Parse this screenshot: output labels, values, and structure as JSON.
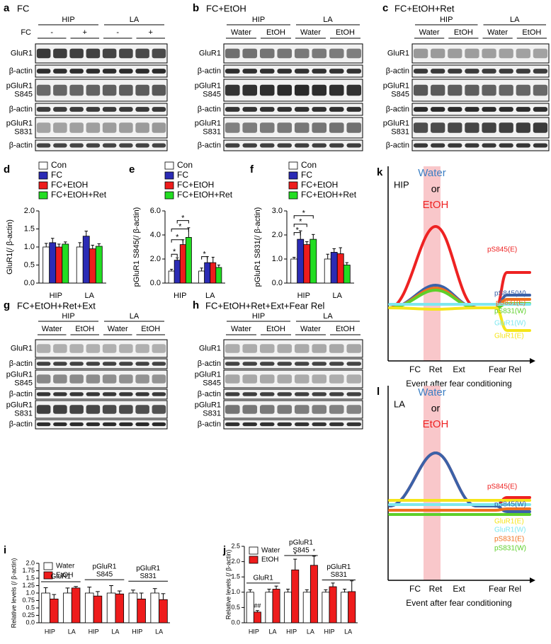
{
  "blots": [
    {
      "label": "a",
      "title": "FC",
      "groups": [
        "HIP",
        "LA"
      ],
      "condition_label": "FC",
      "lanes": [
        "-",
        "+",
        "-",
        "+"
      ],
      "rows": [
        [
          "GluR1"
        ],
        [
          "β-actin"
        ],
        [
          "pGluR1",
          "S845"
        ],
        [
          "β-actin"
        ],
        [
          "pGluR1",
          "S831"
        ],
        [
          "β-actin"
        ]
      ]
    },
    {
      "label": "b",
      "title": "FC+EtOH",
      "groups": [
        "HIP",
        "LA"
      ],
      "lanes": [
        "Water",
        "EtOH",
        "Water",
        "EtOH"
      ],
      "rows": [
        [
          "GluR1"
        ],
        [
          "β-actin"
        ],
        [
          "pGluR1",
          "S845"
        ],
        [
          "β-actin"
        ],
        [
          "pGluR1",
          "S831"
        ],
        [
          "β-actin"
        ]
      ]
    },
    {
      "label": "c",
      "title": "FC+EtOH+Ret",
      "groups": [
        "HIP",
        "LA"
      ],
      "lanes": [
        "Water",
        "EtOH",
        "Water",
        "EtOH"
      ],
      "rows": [
        [
          "GluR1"
        ],
        [
          "β-actin"
        ],
        [
          "pGluR1",
          "S845"
        ],
        [
          "β-actin"
        ],
        [
          "pGluR1",
          "S831"
        ],
        [
          "β-actin"
        ]
      ]
    },
    {
      "label": "g",
      "title": "FC+EtOH+Ret+Ext",
      "groups": [
        "HIP",
        "LA"
      ],
      "lanes": [
        "Water",
        "EtOH",
        "Water",
        "EtOH"
      ],
      "rows": [
        [
          "GluR1"
        ],
        [
          "β-actin"
        ],
        [
          "pGluR1",
          "S845"
        ],
        [
          "β-actin"
        ],
        [
          "pGluR1",
          "S831"
        ],
        [
          "β-actin"
        ]
      ]
    },
    {
      "label": "h",
      "title": "FC+EtOH+Ret+Ext+Fear Rel",
      "groups": [
        "HIP",
        "LA"
      ],
      "lanes": [
        "Water",
        "EtOH",
        "Water",
        "EtOH"
      ],
      "rows": [
        [
          "GluR1"
        ],
        [
          "β-actin"
        ],
        [
          "pGluR1",
          "S845"
        ],
        [
          "β-actin"
        ],
        [
          "pGluR1",
          "S831"
        ],
        [
          "β-actin"
        ]
      ]
    }
  ],
  "chart_data": [
    {
      "type": "bar",
      "label": "d",
      "ylabel": "GluR1(/ β-actin)",
      "categories": [
        "HIP",
        "LA"
      ],
      "series": [
        {
          "name": "Con",
          "color": "#ffffff",
          "values": [
            1.0,
            1.0
          ],
          "errors": [
            0.1,
            0.12
          ]
        },
        {
          "name": "FC",
          "color": "#2b2bb5",
          "values": [
            1.12,
            1.3
          ],
          "errors": [
            0.12,
            0.14
          ]
        },
        {
          "name": "FC+EtOH",
          "color": "#ee1c1c",
          "values": [
            1.0,
            0.95
          ],
          "errors": [
            0.08,
            0.1
          ]
        },
        {
          "name": "FC+EtOH+Ret",
          "color": "#22dd22",
          "values": [
            1.08,
            1.02
          ],
          "errors": [
            0.06,
            0.07
          ]
        }
      ],
      "ylim": [
        0,
        2
      ],
      "yticks": [
        {
          "value": 0,
          "label": "0.0"
        },
        0.5,
        {
          "value": 1,
          "label": "1.0"
        },
        1.5,
        {
          "value": 2,
          "label": "2.0"
        }
      ]
    },
    {
      "type": "bar",
      "label": "e",
      "ylabel": "pGluR1 S845(/ β-actin)",
      "categories": [
        "HIP",
        "LA"
      ],
      "series": [
        {
          "name": "Con",
          "color": "#ffffff",
          "values": [
            1.0,
            1.0
          ],
          "errors": [
            0.15,
            0.25
          ]
        },
        {
          "name": "FC",
          "color": "#2b2bb5",
          "values": [
            1.9,
            1.7
          ],
          "errors": [
            0.2,
            0.5
          ]
        },
        {
          "name": "FC+EtOH",
          "color": "#ee1c1c",
          "values": [
            3.2,
            1.7
          ],
          "errors": [
            0.4,
            0.45
          ]
        },
        {
          "name": "FC+EtOH+Ret",
          "color": "#22dd22",
          "values": [
            3.8,
            1.3
          ],
          "errors": [
            0.8,
            0.2
          ]
        }
      ],
      "ylim": [
        0,
        6
      ],
      "yticks": [
        {
          "value": 0,
          "label": "0.0"
        },
        {
          "value": 2,
          "label": "2.0"
        },
        {
          "value": 4,
          "label": "4.0"
        },
        {
          "value": 6,
          "label": "6.0"
        }
      ],
      "annotations": [
        "*",
        "*",
        "*",
        "*",
        "*"
      ]
    },
    {
      "type": "bar",
      "label": "f",
      "ylabel": "pGluR1 S831(/ β-actin)",
      "categories": [
        "HIP",
        "LA"
      ],
      "series": [
        {
          "name": "Con",
          "color": "#ffffff",
          "values": [
            1.0,
            1.0
          ],
          "errors": [
            0.07,
            0.2
          ]
        },
        {
          "name": "FC",
          "color": "#2b2bb5",
          "values": [
            1.82,
            1.28
          ],
          "errors": [
            0.35,
            0.15
          ]
        },
        {
          "name": "FC+EtOH",
          "color": "#ee1c1c",
          "values": [
            1.6,
            1.22
          ],
          "errors": [
            0.12,
            0.25
          ]
        },
        {
          "name": "FC+EtOH+Ret",
          "color": "#22dd22",
          "values": [
            1.82,
            0.75
          ],
          "errors": [
            0.2,
            0.1
          ]
        }
      ],
      "ylim": [
        0,
        3
      ],
      "yticks": [
        {
          "value": 0,
          "label": "0.0"
        },
        {
          "value": 1,
          "label": "1.0"
        },
        {
          "value": 2,
          "label": "2.0"
        },
        {
          "value": 3,
          "label": "3.0"
        }
      ],
      "annotations": [
        "*",
        "*",
        "*"
      ]
    },
    {
      "type": "bar",
      "label": "i",
      "ylabel": "Relative levels (/ β-actin)",
      "categories": [
        "HIP",
        "LA",
        "HIP",
        "LA",
        "HIP",
        "LA"
      ],
      "groups": [
        [
          "GluR1"
        ],
        [
          "pGluR1",
          "S845"
        ],
        [
          "pGluR1",
          "S831"
        ]
      ],
      "series": [
        {
          "name": "Water",
          "color": "#ffffff",
          "values": [
            1.0,
            1.0,
            1.0,
            1.0,
            1.0,
            1.0
          ],
          "errors": [
            0.18,
            0.17,
            0.2,
            0.25,
            0.1,
            0.15
          ]
        },
        {
          "name": "EtOH",
          "color": "#ee1c1c",
          "values": [
            0.8,
            1.17,
            0.9,
            0.97,
            0.8,
            0.78
          ],
          "errors": [
            0.15,
            0.05,
            0.15,
            0.1,
            0.2,
            0.2
          ]
        }
      ],
      "ylim": [
        0,
        2
      ],
      "yticks": [
        {
          "value": 0,
          "label": "0.0"
        },
        0.25,
        0.5,
        0.75,
        {
          "value": 1,
          "label": "1.0"
        },
        1.25,
        1.5,
        1.75,
        {
          "value": 2,
          "label": "2.0"
        }
      ]
    },
    {
      "type": "bar",
      "label": "j",
      "ylabel": "Relative levels (/ β-actin)",
      "categories": [
        "HIP",
        "LA",
        "HIP",
        "LA",
        "HIP",
        "LA"
      ],
      "groups": [
        [
          "GluR1"
        ],
        [
          "pGluR1",
          "S845"
        ],
        [
          "pGluR1",
          "S831"
        ]
      ],
      "series": [
        {
          "name": "Water",
          "color": "#ffffff",
          "values": [
            1.0,
            1.0,
            1.0,
            1.0,
            1.0,
            1.0
          ],
          "errors": [
            0.08,
            0.1,
            0.1,
            0.08,
            0.08,
            0.1
          ]
        },
        {
          "name": "EtOH",
          "color": "#ee1c1c",
          "values": [
            0.35,
            1.1,
            1.73,
            1.88,
            1.18,
            1.02
          ],
          "errors": [
            0.05,
            0.1,
            0.35,
            0.3,
            0.12,
            0.35
          ]
        }
      ],
      "ylim": [
        0,
        2.5
      ],
      "yticks": [
        {
          "value": 0,
          "label": "0.0"
        },
        0.5,
        {
          "value": 1,
          "label": "1.0"
        },
        1.5,
        {
          "value": 2,
          "label": "2.0"
        },
        2.5
      ],
      "annotations": [
        "##",
        "*",
        "*"
      ]
    }
  ],
  "schematics": [
    {
      "label": "k",
      "region": "HIP",
      "water": "Water",
      "or": "or",
      "etoh": "EtOH",
      "curves": [
        {
          "name": "pS845(E)",
          "color": "#ee2222"
        },
        {
          "name": "pS845(W)",
          "color": "#3b62a8"
        },
        {
          "name": "pS831(E)",
          "color": "#f07020"
        },
        {
          "name": "pS831(W)",
          "color": "#5ed02a"
        },
        {
          "name": "GluR1(W)",
          "color": "#7fe8f0"
        },
        {
          "name": "GluR1(E)",
          "color": "#f5e51a"
        }
      ],
      "x_labels": [
        "FC",
        "Ret",
        "Ext",
        "Fear Rel"
      ],
      "x_title": "Event after fear conditioning"
    },
    {
      "label": "l",
      "region": "LA",
      "water": "Water",
      "or": "or",
      "etoh": "EtOH",
      "curves": [
        {
          "name": "pS845(E)",
          "color": "#ee2222"
        },
        {
          "name": "pS845(W)",
          "color": "#3b62a8"
        },
        {
          "name": "GluR1(E)",
          "color": "#f5e51a"
        },
        {
          "name": "GluR1(W)",
          "color": "#7fe8f0"
        },
        {
          "name": "pS831(E)",
          "color": "#f07020"
        },
        {
          "name": "pS831(W)",
          "color": "#5ed02a"
        }
      ],
      "x_labels": [
        "FC",
        "Ret",
        "Ext",
        "Fear Rel"
      ],
      "x_title": "Event after fear conditioning"
    }
  ]
}
